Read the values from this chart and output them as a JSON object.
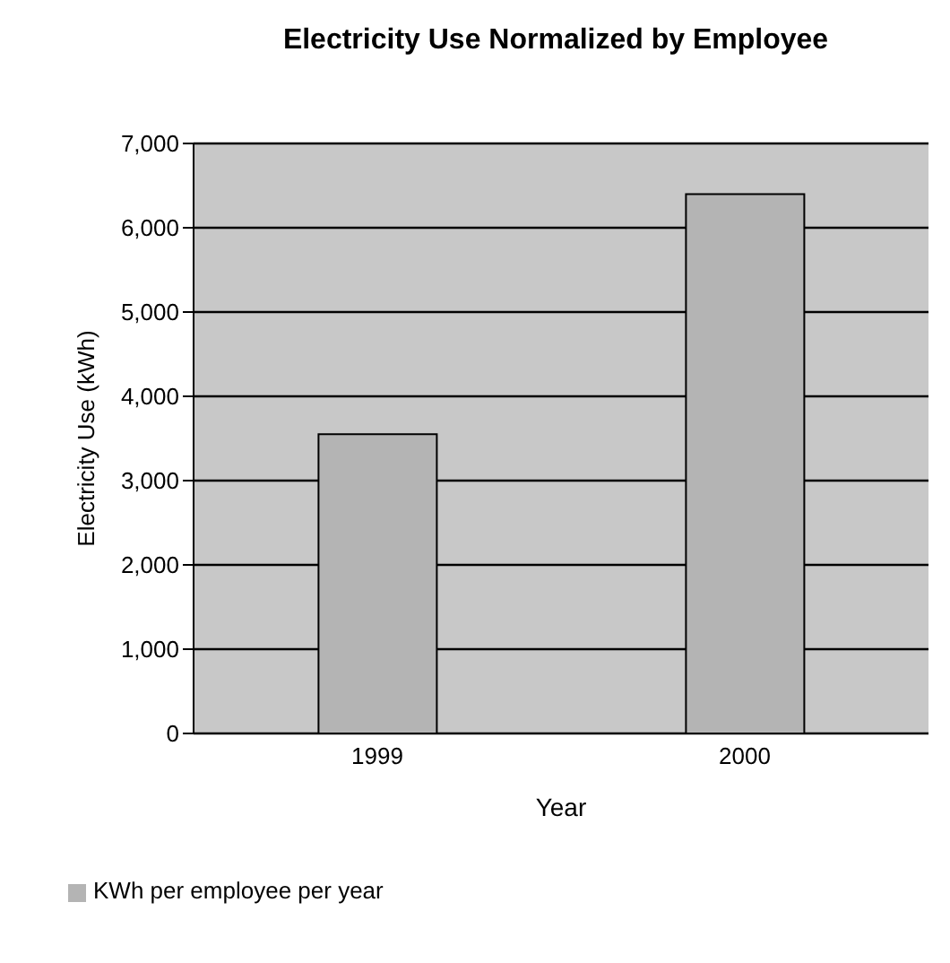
{
  "chart_data": {
    "type": "bar",
    "title": "Electricity Use Normalized by Employee",
    "xlabel": "Year",
    "ylabel": "Electricity Use (kWh)",
    "categories": [
      "1999",
      "2000"
    ],
    "series": [
      {
        "name": "KWh per employee per year",
        "color": "#b4b4b4",
        "values": [
          3550,
          6400
        ]
      }
    ],
    "ylim": [
      0,
      7000
    ],
    "yticks": [
      {
        "value": 0,
        "label": "0"
      },
      {
        "value": 1000,
        "label": "1,000"
      },
      {
        "value": 2000,
        "label": "2,000"
      },
      {
        "value": 3000,
        "label": "3,000"
      },
      {
        "value": 4000,
        "label": "4,000"
      },
      {
        "value": 5000,
        "label": "5,000"
      },
      {
        "value": 6000,
        "label": "6,000"
      },
      {
        "value": 7000,
        "label": "7,000"
      }
    ],
    "grid": "y",
    "legend": "bottom left"
  }
}
